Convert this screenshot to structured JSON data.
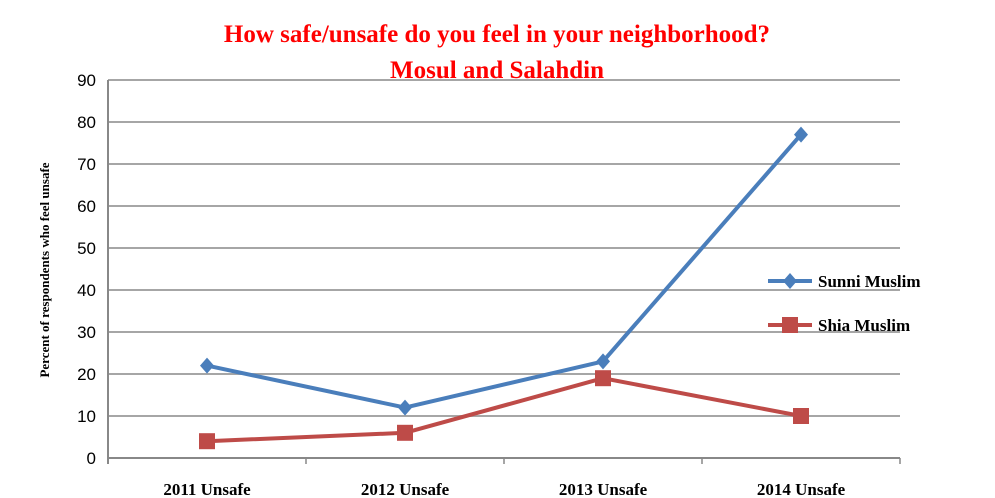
{
  "chart_data": {
    "type": "line",
    "title": "How safe/unsafe do you feel in your neighborhood?",
    "subtitle": "Mosul and Salahdin",
    "xlabel": "",
    "ylabel": "Percent of respondents who feel unsafe",
    "categories": [
      "2011 Unsafe",
      "2012 Unsafe",
      "2013 Unsafe",
      "2014 Unsafe"
    ],
    "ylim": [
      0,
      90
    ],
    "yticks": [
      0,
      10,
      20,
      30,
      40,
      50,
      60,
      70,
      80,
      90
    ],
    "grid": true,
    "legend_position": "right",
    "series": [
      {
        "name": "Sunni Muslim",
        "values": [
          22,
          12,
          23,
          77
        ],
        "color": "#4a7ebb",
        "marker": "diamond"
      },
      {
        "name": "Shia Muslim",
        "values": [
          4,
          6,
          19,
          10
        ],
        "color": "#be4b48",
        "marker": "square"
      }
    ]
  }
}
